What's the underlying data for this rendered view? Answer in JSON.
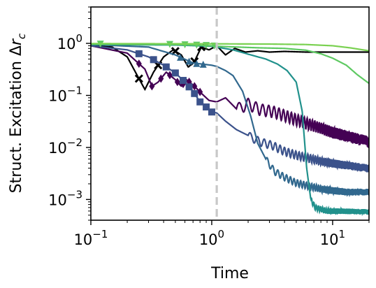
{
  "chart_data": {
    "type": "line",
    "xlabel": "Time",
    "ylabel_main": "Struct. Excitation Δ",
    "ylabel_sym": "r",
    "ylabel_sub": "c",
    "xscale": "log",
    "yscale": "log",
    "xlim": [
      0.1,
      20
    ],
    "ylim": [
      0.0004,
      5
    ],
    "grid": false,
    "x_ticks": [
      {
        "value": 0.1,
        "base": "10",
        "exp": "−1"
      },
      {
        "value": 1,
        "base": "10",
        "exp": "0"
      },
      {
        "value": 10,
        "base": "10",
        "exp": "1"
      }
    ],
    "y_ticks": [
      {
        "value": 0.001,
        "base": "10",
        "exp": "−3"
      },
      {
        "value": 0.01,
        "base": "10",
        "exp": "−2"
      },
      {
        "value": 0.1,
        "base": "10",
        "exp": "−1"
      },
      {
        "value": 1,
        "base": "10",
        "exp": "0"
      }
    ],
    "vline": {
      "x": 1.1,
      "color": "#c8c8c8"
    },
    "series": [
      {
        "color": "#000000",
        "marker": "x",
        "points": [
          [
            0.1,
            0.9
          ],
          [
            0.15,
            0.85
          ],
          [
            0.2,
            0.55
          ],
          [
            0.24,
            0.25
          ],
          [
            0.28,
            0.13
          ],
          [
            0.33,
            0.28
          ],
          [
            0.4,
            0.55
          ],
          [
            0.48,
            0.75
          ],
          [
            0.56,
            0.6
          ],
          [
            0.64,
            0.35
          ],
          [
            0.72,
            0.45
          ],
          [
            0.82,
            0.85
          ],
          [
            0.95,
            0.75
          ],
          [
            1.1,
            0.9
          ],
          [
            1.3,
            0.6
          ],
          [
            1.55,
            0.8
          ],
          [
            1.9,
            0.68
          ],
          [
            2.4,
            0.72
          ],
          [
            3,
            0.68
          ],
          [
            4,
            0.7
          ],
          [
            6,
            0.68
          ],
          [
            10,
            0.68
          ],
          [
            20,
            0.68
          ]
        ],
        "marker_x": [
          0.25,
          0.36,
          0.5,
          0.72,
          0.82
        ]
      },
      {
        "color": "#440154",
        "marker": "d",
        "points": [
          [
            0.1,
            0.9
          ],
          [
            0.2,
            0.65
          ],
          [
            0.28,
            0.32
          ],
          [
            0.32,
            0.15
          ],
          [
            0.36,
            0.18
          ],
          [
            0.42,
            0.28
          ],
          [
            0.5,
            0.2
          ],
          [
            0.56,
            0.15
          ],
          [
            0.62,
            0.2
          ],
          [
            0.72,
            0.15
          ],
          [
            0.82,
            0.11
          ],
          [
            0.95,
            0.08
          ],
          [
            1.1,
            0.075
          ],
          [
            1.3,
            0.09
          ],
          [
            1.6,
            0.055
          ],
          [
            2,
            0.07
          ],
          [
            2.5,
            0.055
          ],
          [
            3.2,
            0.05
          ],
          [
            4,
            0.042
          ],
          [
            5,
            0.035
          ],
          [
            6.5,
            0.028
          ],
          [
            8,
            0.024
          ],
          [
            10,
            0.02
          ],
          [
            13,
            0.017
          ],
          [
            16,
            0.015
          ],
          [
            20,
            0.013
          ]
        ],
        "marker_x": [
          0.25,
          0.32,
          0.38,
          0.45,
          0.52,
          0.58,
          0.65,
          0.72,
          0.8
        ],
        "oscillate_from": 1.6,
        "osc_amp": 0.25
      },
      {
        "color": "#3b528b",
        "marker": "s",
        "points": [
          [
            0.1,
            0.9
          ],
          [
            0.2,
            0.75
          ],
          [
            0.3,
            0.55
          ],
          [
            0.4,
            0.38
          ],
          [
            0.5,
            0.27
          ],
          [
            0.6,
            0.18
          ],
          [
            0.7,
            0.12
          ],
          [
            0.8,
            0.075
          ],
          [
            0.9,
            0.06
          ],
          [
            1.0,
            0.048
          ],
          [
            1.1,
            0.046
          ],
          [
            1.3,
            0.032
          ],
          [
            1.6,
            0.022
          ],
          [
            2,
            0.017
          ],
          [
            2.5,
            0.013
          ],
          [
            3.2,
            0.011
          ],
          [
            4,
            0.0085
          ],
          [
            5,
            0.0072
          ],
          [
            6.5,
            0.0062
          ],
          [
            8,
            0.0055
          ],
          [
            10,
            0.005
          ],
          [
            13,
            0.0046
          ],
          [
            16,
            0.0043
          ],
          [
            20,
            0.004
          ]
        ],
        "marker_x": [
          0.25,
          0.33,
          0.42,
          0.5,
          0.58,
          0.65,
          0.72,
          0.8,
          0.9,
          1.0
        ],
        "oscillate_from": 2,
        "osc_amp": 0.18
      },
      {
        "color": "#31688e",
        "marker": "triangle",
        "points": [
          [
            0.1,
            0.95
          ],
          [
            0.3,
            0.85
          ],
          [
            0.5,
            0.6
          ],
          [
            0.7,
            0.42
          ],
          [
            1.0,
            0.38
          ],
          [
            1.1,
            0.36
          ],
          [
            1.3,
            0.3
          ],
          [
            1.5,
            0.24
          ],
          [
            1.8,
            0.12
          ],
          [
            2.1,
            0.04
          ],
          [
            2.4,
            0.012
          ],
          [
            2.8,
            0.006
          ],
          [
            3.3,
            0.0035
          ],
          [
            4,
            0.0027
          ],
          [
            5,
            0.0021
          ],
          [
            6.5,
            0.0018
          ],
          [
            8,
            0.0016
          ],
          [
            10,
            0.0015
          ],
          [
            13,
            0.0014
          ],
          [
            20,
            0.0014
          ]
        ],
        "marker_x": [
          0.55,
          0.65,
          0.75,
          0.85
        ],
        "oscillate_from": 2.8,
        "osc_amp": 0.15
      },
      {
        "color": "#21918c",
        "marker": "",
        "points": [
          [
            0.1,
            0.95
          ],
          [
            0.5,
            0.93
          ],
          [
            1.0,
            0.88
          ],
          [
            1.5,
            0.75
          ],
          [
            2,
            0.62
          ],
          [
            2.8,
            0.5
          ],
          [
            3.5,
            0.4
          ],
          [
            4.2,
            0.3
          ],
          [
            5,
            0.18
          ],
          [
            5.6,
            0.05
          ],
          [
            6.1,
            0.004
          ],
          [
            6.6,
            0.001
          ],
          [
            7.2,
            0.0007
          ],
          [
            9,
            0.0006
          ],
          [
            12,
            0.0006
          ],
          [
            20,
            0.00058
          ]
        ],
        "marker_x": [],
        "oscillate_from": 6.6,
        "osc_amp": 0.12
      },
      {
        "color": "#5ec962",
        "marker": "v",
        "points": [
          [
            0.1,
            0.97
          ],
          [
            0.5,
            0.95
          ],
          [
            0.8,
            0.92
          ],
          [
            1.0,
            0.9
          ],
          [
            1.1,
            0.88
          ],
          [
            1.6,
            0.85
          ],
          [
            2.5,
            0.82
          ],
          [
            4,
            0.8
          ],
          [
            6,
            0.74
          ],
          [
            8,
            0.63
          ],
          [
            10,
            0.52
          ],
          [
            13,
            0.38
          ],
          [
            16,
            0.25
          ],
          [
            20,
            0.17
          ]
        ],
        "marker_x": [
          0.12,
          0.45,
          0.6,
          0.75,
          0.9,
          1.05
        ]
      },
      {
        "color": "#7ad151",
        "marker": "",
        "points": [
          [
            0.1,
            0.99
          ],
          [
            1,
            0.98
          ],
          [
            3,
            0.97
          ],
          [
            6,
            0.95
          ],
          [
            10,
            0.9
          ],
          [
            14,
            0.82
          ],
          [
            20,
            0.72
          ]
        ],
        "marker_x": []
      }
    ]
  }
}
